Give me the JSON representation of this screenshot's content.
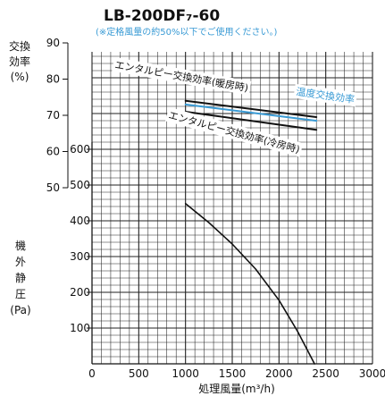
{
  "chart_data": {
    "type": "line",
    "title": "LB-200DF₇-60",
    "subtitle": "(※定格風量の約50%以下でご使用ください。)",
    "xlabel": "処理風量(m³/h)",
    "xlim": [
      0,
      3000
    ],
    "x_ticks": [
      "0",
      "500",
      "1000",
      "1500",
      "2000",
      "2500",
      "3000"
    ],
    "left_axis_top": {
      "label_lines": [
        "交換",
        "効率",
        "(%)"
      ],
      "range": [
        50,
        90
      ],
      "ticks": [
        "90",
        "80",
        "70",
        "60",
        "50"
      ]
    },
    "left_axis_bottom": {
      "label_lines": [
        "機",
        "外",
        "静",
        "圧",
        "(Pa)"
      ],
      "range": [
        0,
        600
      ],
      "ticks": [
        "600",
        "500",
        "400",
        "300",
        "200",
        "100"
      ]
    },
    "grid": true,
    "series": [
      {
        "name": "エンタルピー交換効率(暖房時)",
        "axis": "efficiency",
        "color": "#111111",
        "x": [
          1000,
          2400
        ],
        "y": [
          74,
          69.5
        ]
      },
      {
        "name": "温度交換効率",
        "axis": "efficiency",
        "color": "#3a9bd5",
        "x": [
          1000,
          2400
        ],
        "y": [
          73,
          68.5
        ]
      },
      {
        "name": "エンタルピー交換効率(冷房時)",
        "axis": "efficiency",
        "color": "#111111",
        "x": [
          1000,
          2400
        ],
        "y": [
          71,
          66
        ]
      },
      {
        "axis": "pressure",
        "color": "#111111",
        "x": [
          1000,
          1250,
          1500,
          1750,
          2000,
          2200,
          2380
        ],
        "y": [
          448,
          395,
          335,
          265,
          178,
          90,
          0
        ]
      }
    ]
  }
}
